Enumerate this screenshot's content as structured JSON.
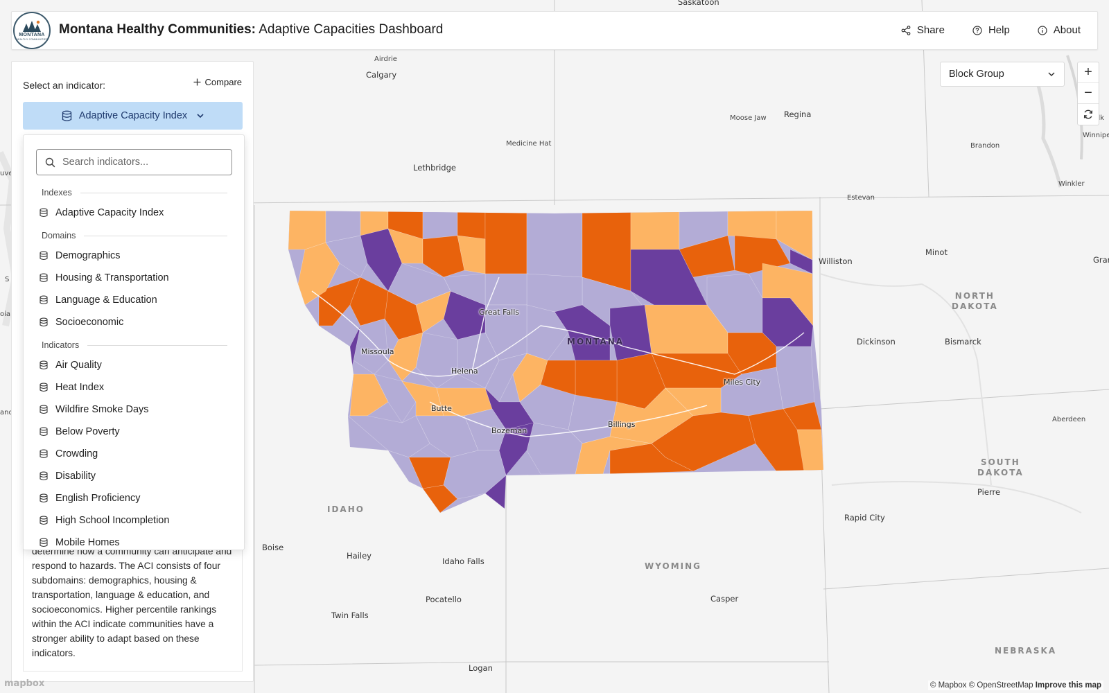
{
  "header": {
    "logo_text": "MONTANA",
    "logo_subtext": "HEALTHY COMMUNITIES",
    "title_bold": "Montana Healthy Communities:",
    "title_rest": " Adaptive Capacities Dashboard",
    "actions": [
      {
        "label": "Share",
        "icon": "share-icon"
      },
      {
        "label": "Help",
        "icon": "help-icon"
      },
      {
        "label": "About",
        "icon": "info-icon"
      }
    ]
  },
  "map_controls": {
    "geography_select": "Block Group",
    "zoom_in": "+",
    "zoom_out": "−"
  },
  "panel": {
    "select_label": "Select an indicator:",
    "compare_label": "Compare",
    "selected_indicator": "Adaptive Capacity Index",
    "description": "determine how a community can anticipate and respond to hazards. The ACI consists of four subdomains: demographics, housing & transportation, language & education, and socioeconomics. Higher percentile rankings within the ACI indicate communities have a stronger ability to adapt based on these indicators."
  },
  "dropdown": {
    "search_placeholder": "Search indicators...",
    "groups": [
      {
        "label": "Indexes",
        "items": [
          "Adaptive Capacity Index"
        ]
      },
      {
        "label": "Domains",
        "items": [
          "Demographics",
          "Housing & Transportation",
          "Language & Education",
          "Socioeconomic"
        ]
      },
      {
        "label": "Indicators",
        "items": [
          "Air Quality",
          "Heat Index",
          "Wildfire Smoke Days",
          "Below Poverty",
          "Crowding",
          "Disability",
          "English Proficiency",
          "High School Incompletion",
          "Mobile Homes"
        ]
      }
    ]
  },
  "map": {
    "colors": {
      "background": "#f4f4f4",
      "class_dark_orange": "#e8620c",
      "class_light_orange": "#fdb463",
      "class_light_purple": "#b3acd6",
      "class_dark_purple": "#6a3e9e"
    },
    "place_labels": [
      "Saskatoon",
      "Airdrie",
      "Calgary",
      "Moose Jaw",
      "Regina",
      "Medicine Hat",
      "Lethbridge",
      "Brandon",
      "Winnipe",
      "Selk",
      "Winkler",
      "Estevan",
      "Williston",
      "Minot",
      "Gran",
      "Dickinson",
      "Bismarck",
      "Aberdeen",
      "Pierre",
      "Rapid City",
      "Boise",
      "Hailey",
      "Idaho Falls",
      "Pocatello",
      "Twin Falls",
      "Casper",
      "Logan",
      "uve",
      "S",
      "oia",
      "and"
    ],
    "region_labels": [
      "NORTH\nDAKOTA",
      "SOUTH\nDAKOTA",
      "IDAHO",
      "WYOMING",
      "NEBRASKA"
    ],
    "montana_cities": [
      "Great Falls",
      "Missoula",
      "Helena",
      "Butte",
      "Bozeman",
      "Billings",
      "Miles City"
    ],
    "state_label": "MONTANA"
  },
  "attribution": {
    "text": "© Mapbox © OpenStreetMap",
    "improve": "Improve this map",
    "logo": "mapbox"
  }
}
